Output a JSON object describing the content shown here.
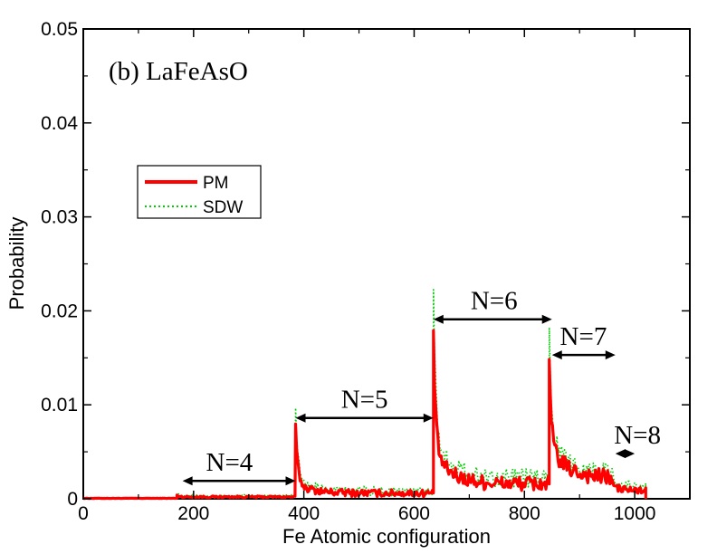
{
  "chart_data": {
    "type": "line",
    "title": "",
    "panel_label": "(b) LaFeAsO",
    "xlabel": "Fe Atomic configuration",
    "ylabel": "Probability",
    "xlim": [
      0,
      1100
    ],
    "ylim": [
      0,
      0.05
    ],
    "x_ticks": [
      0,
      200,
      400,
      600,
      800,
      1000
    ],
    "x_tick_labels": [
      "0",
      "200",
      "400",
      "600",
      "800",
      "1000"
    ],
    "y_ticks": [
      0,
      0.01,
      0.02,
      0.03,
      0.04,
      0.05
    ],
    "y_tick_labels": [
      "0",
      "0.01",
      "0.02",
      "0.03",
      "0.04",
      "0.05"
    ],
    "grid": false,
    "legend_position": "upper-left",
    "series": [
      {
        "name": "PM",
        "color": "#ff0000",
        "style": "solid-thick",
        "segments": [
          {
            "from": 0,
            "to": 170,
            "level": 5e-05,
            "spike": 5e-05,
            "decay": 0.0,
            "noise": 2e-05
          },
          {
            "from": 170,
            "to": 385,
            "level": 0.0002,
            "spike": 0.0004,
            "decay": 0.0,
            "noise": 0.0001
          },
          {
            "from": 385,
            "to": 635,
            "level": 0.0006,
            "spike": 0.0068,
            "decay": 0.001,
            "noise": 0.0004
          },
          {
            "from": 635,
            "to": 845,
            "level": 0.0016,
            "spike": 0.0143,
            "decay": 0.0035,
            "noise": 0.0008
          },
          {
            "from": 845,
            "to": 960,
            "level": 0.0022,
            "spike": 0.0107,
            "decay": 0.0035,
            "noise": 0.0009
          },
          {
            "from": 960,
            "to": 1020,
            "level": 0.0008,
            "spike": 0.0012,
            "decay": 0.0004,
            "noise": 0.0004
          }
        ]
      },
      {
        "name": "SDW",
        "color": "#00cc00",
        "style": "dotted",
        "segments": [
          {
            "from": 0,
            "to": 170,
            "level": 0.0001,
            "spike": 0.0001,
            "decay": 0.0,
            "noise": 3e-05
          },
          {
            "from": 170,
            "to": 385,
            "level": 0.0003,
            "spike": 0.0005,
            "decay": 0.0,
            "noise": 0.00015
          },
          {
            "from": 385,
            "to": 635,
            "level": 0.0008,
            "spike": 0.0085,
            "decay": 0.0015,
            "noise": 0.0005
          },
          {
            "from": 635,
            "to": 845,
            "level": 0.0022,
            "spike": 0.0185,
            "decay": 0.0045,
            "noise": 0.001
          },
          {
            "from": 845,
            "to": 960,
            "level": 0.0028,
            "spike": 0.0148,
            "decay": 0.004,
            "noise": 0.001
          },
          {
            "from": 960,
            "to": 1020,
            "level": 0.0012,
            "spike": 0.0022,
            "decay": 0.0006,
            "noise": 0.0005
          }
        ]
      }
    ],
    "annotations": [
      {
        "label": "N=4",
        "x_start": 180,
        "x_end": 385,
        "y": 0.0019,
        "text_x": 265,
        "text_y": 0.003
      },
      {
        "label": "N=5",
        "x_start": 385,
        "x_end": 635,
        "y": 0.0086,
        "text_x": 510,
        "text_y": 0.0097
      },
      {
        "label": "N=6",
        "x_start": 635,
        "x_end": 850,
        "y": 0.0191,
        "text_x": 745,
        "text_y": 0.0202
      },
      {
        "label": "N=7",
        "x_start": 850,
        "x_end": 965,
        "y": 0.0153,
        "text_x": 907,
        "text_y": 0.0164
      },
      {
        "label": "N=8",
        "x_start": 965,
        "x_end": 1000,
        "y": 0.0048,
        "text_x": 1005,
        "text_y": 0.0059
      }
    ]
  }
}
